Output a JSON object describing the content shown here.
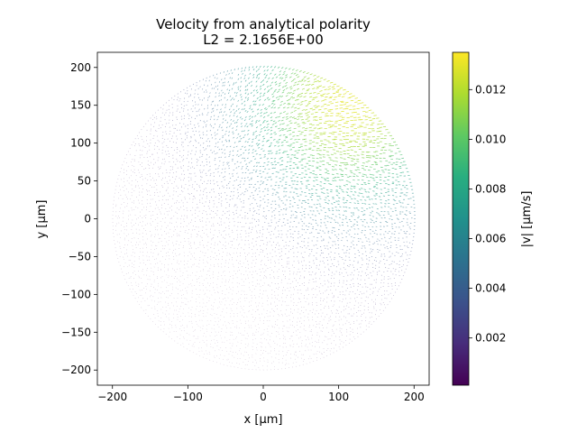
{
  "chart_data": {
    "type": "quiver",
    "title": "Velocity from analytical polarity",
    "subtitle": "L2 = 2.1656E+00",
    "xlabel": "x [μm]",
    "ylabel": "y [μm]",
    "xlim": [
      -220,
      220
    ],
    "ylim": [
      -220,
      220
    ],
    "xticks": [
      -200,
      -100,
      0,
      100,
      200
    ],
    "yticks": [
      -200,
      -150,
      -100,
      -50,
      0,
      50,
      100,
      150,
      200
    ],
    "grid": false,
    "domain": {
      "shape": "disk",
      "center": [
        0,
        0
      ],
      "radius": 200
    },
    "field": {
      "max_speed_location": [
        110,
        150
      ],
      "min_speed_location": [
        -60,
        -130
      ],
      "dominant_direction": "down-right",
      "point_spacing": 5
    },
    "colorbar": {
      "label": "|v| [μm/s]",
      "colormap": "viridis",
      "range": [
        0.0001,
        0.0135
      ],
      "ticks": [
        0.002,
        0.004,
        0.006,
        0.008,
        0.01,
        0.012
      ],
      "tick_labels": [
        "0.002",
        "0.004",
        "0.006",
        "0.008",
        "0.010",
        "0.012"
      ]
    }
  }
}
